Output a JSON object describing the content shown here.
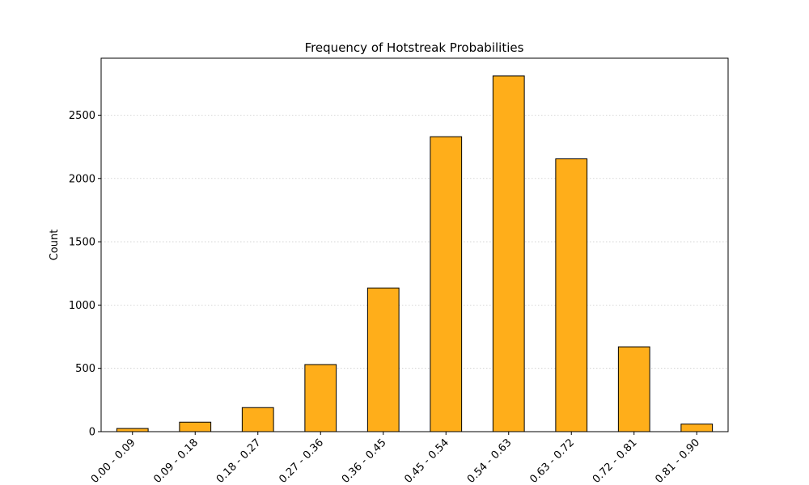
{
  "chart_data": {
    "type": "bar",
    "title": "Frequency of Hotstreak Probabilities",
    "xlabel": "",
    "ylabel": "Count",
    "categories": [
      "0.00 - 0.09",
      "0.09 - 0.18",
      "0.18 - 0.27",
      "0.27 - 0.36",
      "0.36 - 0.45",
      "0.45 - 0.54",
      "0.54 - 0.63",
      "0.63 - 0.72",
      "0.72 - 0.81",
      "0.81 - 0.90"
    ],
    "values": [
      25,
      75,
      190,
      530,
      1135,
      2330,
      2810,
      2155,
      670,
      60
    ],
    "ylim": [
      0,
      2950
    ],
    "yticks": [
      0,
      500,
      1000,
      1500,
      2000,
      2500
    ],
    "grid": "y-dotted",
    "colors": {
      "bar_fill": "#FFAE1A",
      "bar_edge": "#000000",
      "grid": "#cccccc"
    }
  }
}
